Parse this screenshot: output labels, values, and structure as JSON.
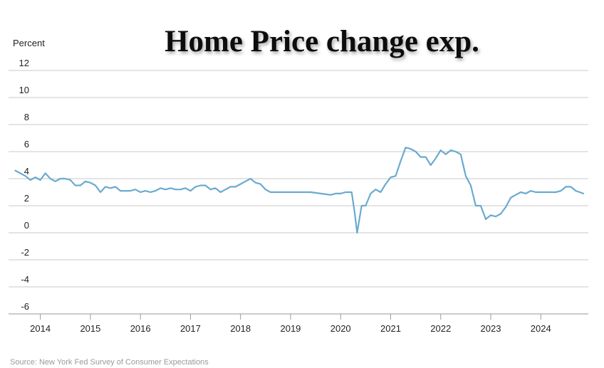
{
  "chart_data": {
    "type": "line",
    "title": "Home Price change exp.",
    "ylabel": "Percent",
    "xlabel": "",
    "source": "Source: New York Fed Survey of Consumer Expectations",
    "ylim": [
      -6,
      12
    ],
    "yticks": [
      12,
      10,
      8,
      6,
      4,
      2,
      0,
      -2,
      -4,
      -6
    ],
    "xlim": [
      2013.45,
      2024.95
    ],
    "xticks": [
      2014,
      2015,
      2016,
      2017,
      2018,
      2019,
      2020,
      2021,
      2022,
      2023,
      2024
    ],
    "xtick_labels": [
      "2014",
      "2015",
      "2016",
      "2017",
      "2018",
      "2019",
      "2020",
      "2021",
      "2022",
      "2023",
      "2024"
    ],
    "grid": true,
    "line_color": "#6aaad0",
    "series": [
      {
        "x": [
          2013.5,
          2013.6,
          2013.7,
          2013.8,
          2013.9,
          2014.0,
          2014.1,
          2014.2,
          2014.3,
          2014.4,
          2014.5,
          2014.6,
          2014.7,
          2014.8,
          2014.9,
          2015.0,
          2015.1,
          2015.2,
          2015.3,
          2015.4,
          2015.5,
          2015.6,
          2015.7,
          2015.8,
          2015.9,
          2016.0,
          2016.1,
          2016.2,
          2016.3,
          2016.4,
          2016.5,
          2016.6,
          2016.7,
          2016.8,
          2016.9,
          2017.0,
          2017.1,
          2017.2,
          2017.3,
          2017.4,
          2017.5,
          2017.6,
          2017.7,
          2017.8,
          2017.9,
          2018.0,
          2018.1,
          2018.2,
          2018.3,
          2018.4,
          2018.5,
          2018.6,
          2018.7,
          2018.8,
          2018.9,
          2019.0,
          2019.2,
          2019.4,
          2019.6,
          2019.8,
          2019.9,
          2020.0,
          2020.1,
          2020.15,
          2020.22,
          2020.28,
          2020.33,
          2020.42,
          2020.5,
          2020.6,
          2020.7,
          2020.8,
          2020.9,
          2021.0,
          2021.1,
          2021.2,
          2021.3,
          2021.4,
          2021.5,
          2021.6,
          2021.7,
          2021.8,
          2021.9,
          2022.0,
          2022.1,
          2022.2,
          2022.3,
          2022.4,
          2022.5,
          2022.6,
          2022.7,
          2022.8,
          2022.9,
          2023.0,
          2023.1,
          2023.2,
          2023.3,
          2023.4,
          2023.5,
          2023.6,
          2023.7,
          2023.8,
          2023.9,
          2024.0,
          2024.1,
          2024.2,
          2024.3,
          2024.4,
          2024.5,
          2024.6,
          2024.7,
          2024.85
        ],
        "values": [
          4.6,
          4.4,
          4.2,
          3.9,
          4.1,
          3.9,
          4.4,
          4.0,
          3.8,
          4.0,
          4.0,
          3.9,
          3.5,
          3.5,
          3.8,
          3.7,
          3.5,
          3.0,
          3.4,
          3.3,
          3.4,
          3.1,
          3.1,
          3.1,
          3.2,
          3.0,
          3.1,
          3.0,
          3.1,
          3.3,
          3.2,
          3.3,
          3.2,
          3.2,
          3.3,
          3.1,
          3.4,
          3.5,
          3.5,
          3.2,
          3.3,
          3.0,
          3.2,
          3.4,
          3.4,
          3.6,
          3.8,
          4.0,
          3.7,
          3.6,
          3.2,
          3.0,
          3.0,
          3.0,
          3.0,
          3.0,
          3.0,
          3.0,
          2.9,
          2.8,
          2.9,
          2.9,
          3.0,
          3.0,
          3.0,
          1.5,
          0.0,
          2.0,
          2.0,
          2.9,
          3.2,
          3.0,
          3.6,
          4.1,
          4.2,
          5.3,
          6.3,
          6.2,
          6.0,
          5.6,
          5.6,
          5.0,
          5.5,
          6.1,
          5.8,
          6.1,
          6.0,
          5.8,
          4.2,
          3.5,
          2.0,
          2.0,
          1.0,
          1.3,
          1.2,
          1.4,
          1.9,
          2.6,
          2.8,
          3.0,
          2.9,
          3.1,
          3.0,
          3.0,
          3.0,
          3.0,
          3.0,
          3.1,
          3.4,
          3.4,
          3.1,
          2.9
        ]
      }
    ]
  }
}
